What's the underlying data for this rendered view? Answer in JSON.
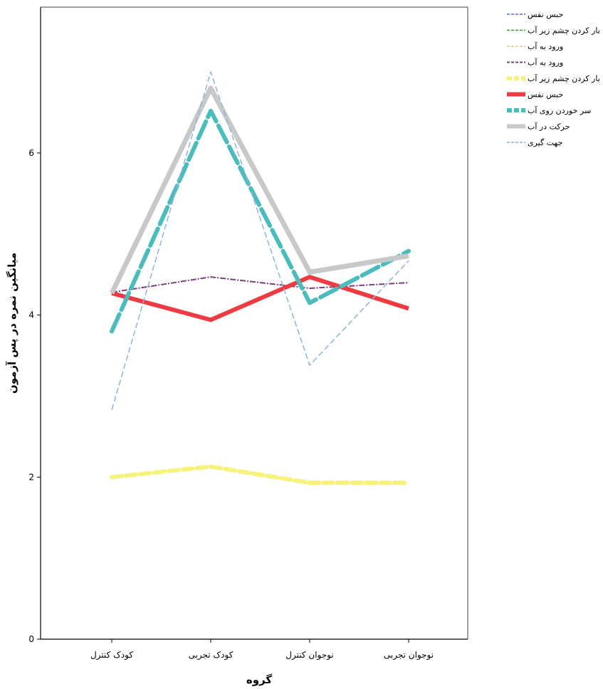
{
  "chart_data": {
    "type": "line",
    "categories": [
      "کودک کنترل",
      "کودک تجربی",
      "نوجوان کنترل",
      "نوجوان تجربی"
    ],
    "xlabel": "گروه",
    "ylabel": "میانگین نمره در پس آزمون",
    "ylim": [
      0,
      7.8
    ],
    "yticks": [
      0,
      2,
      4,
      6
    ],
    "grid": false,
    "legend_position": "top-right",
    "series": [
      {
        "name": "حبس نفس",
        "color": "#5470c6",
        "dash": "6,3",
        "width": 1.5,
        "values": [
          null,
          null,
          null,
          null
        ]
      },
      {
        "name": "بار کردن چشم زیر آب",
        "color": "#2ca02c",
        "dash": "6,3",
        "width": 1.5,
        "values": [
          null,
          null,
          null,
          null
        ]
      },
      {
        "name": "ورود به آب",
        "color": "#d8c9a0",
        "dash": "6,3",
        "width": 1.5,
        "values": [
          null,
          null,
          null,
          null
        ]
      },
      {
        "name": "ورود به آب",
        "color": "#7b3f7b",
        "dash": "8,2,2,2",
        "width": 2,
        "values": [
          4.28,
          4.47,
          4.33,
          4.4
        ]
      },
      {
        "name": "بار کردن چشم زیر آب",
        "color": "#f7f27a",
        "dash": "14,6",
        "width": 6,
        "values": [
          2.0,
          2.13,
          1.93,
          1.93
        ]
      },
      {
        "name": "حبس نفس",
        "color": "#ee3b41",
        "dash": "",
        "width": 6,
        "values": [
          4.27,
          3.94,
          4.47,
          4.08
        ]
      },
      {
        "name": "سر خوردن روی آب",
        "color": "#4bbcbc",
        "dash": "26,7",
        "width": 6,
        "values": [
          3.8,
          6.52,
          4.15,
          4.79
        ]
      },
      {
        "name": "حرکت در آب",
        "color": "#c8c8c8",
        "dash": "",
        "width": 7,
        "values": [
          4.27,
          6.8,
          4.53,
          4.73
        ]
      },
      {
        "name": "جهت گیری",
        "color": "#8fb3dc",
        "dash": "8,4",
        "width": 1.5,
        "values": [
          2.83,
          7.0,
          3.38,
          4.67
        ]
      }
    ]
  }
}
